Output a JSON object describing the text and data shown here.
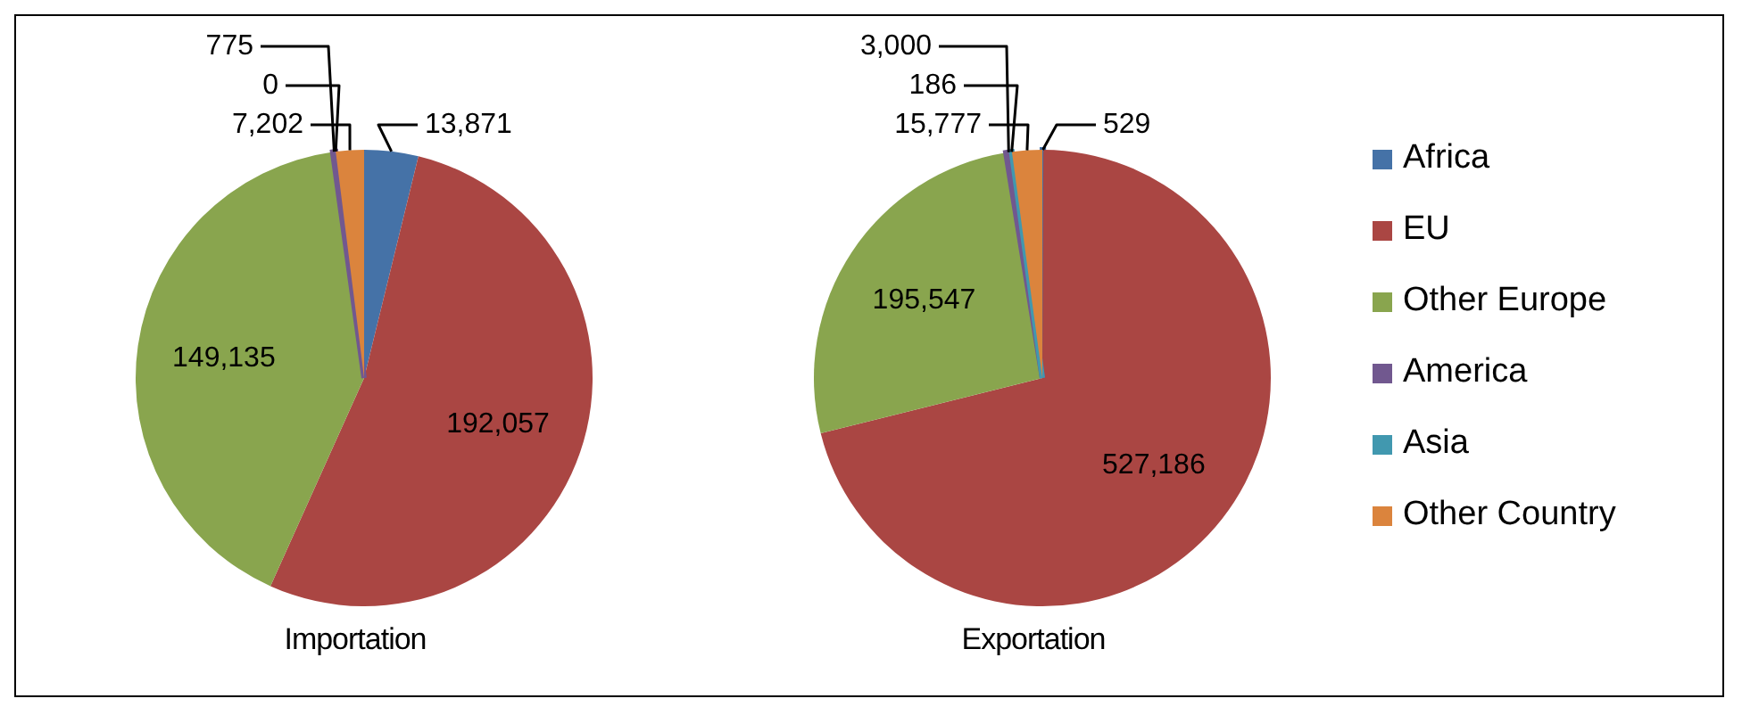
{
  "chart_data": {
    "type": "pie",
    "categories": [
      "Africa",
      "EU",
      "Other Europe",
      "America",
      "Asia",
      "Other Country"
    ],
    "colors": [
      "#4572a7",
      "#aa4643",
      "#89a54e",
      "#71588f",
      "#4198af",
      "#db843d"
    ],
    "legend": "right",
    "series": [
      {
        "name": "Importation",
        "values": [
          13871,
          192057,
          149135,
          775,
          0,
          7202
        ],
        "value_labels": [
          "13,871",
          "192,057",
          "149,135",
          "775",
          "0",
          "7,202"
        ]
      },
      {
        "name": "Exportation",
        "values": [
          529,
          527186,
          195547,
          3000,
          186,
          15777
        ],
        "value_labels": [
          "529",
          "527,186",
          "195,547",
          "3,000",
          "186",
          "15,777"
        ]
      }
    ]
  }
}
